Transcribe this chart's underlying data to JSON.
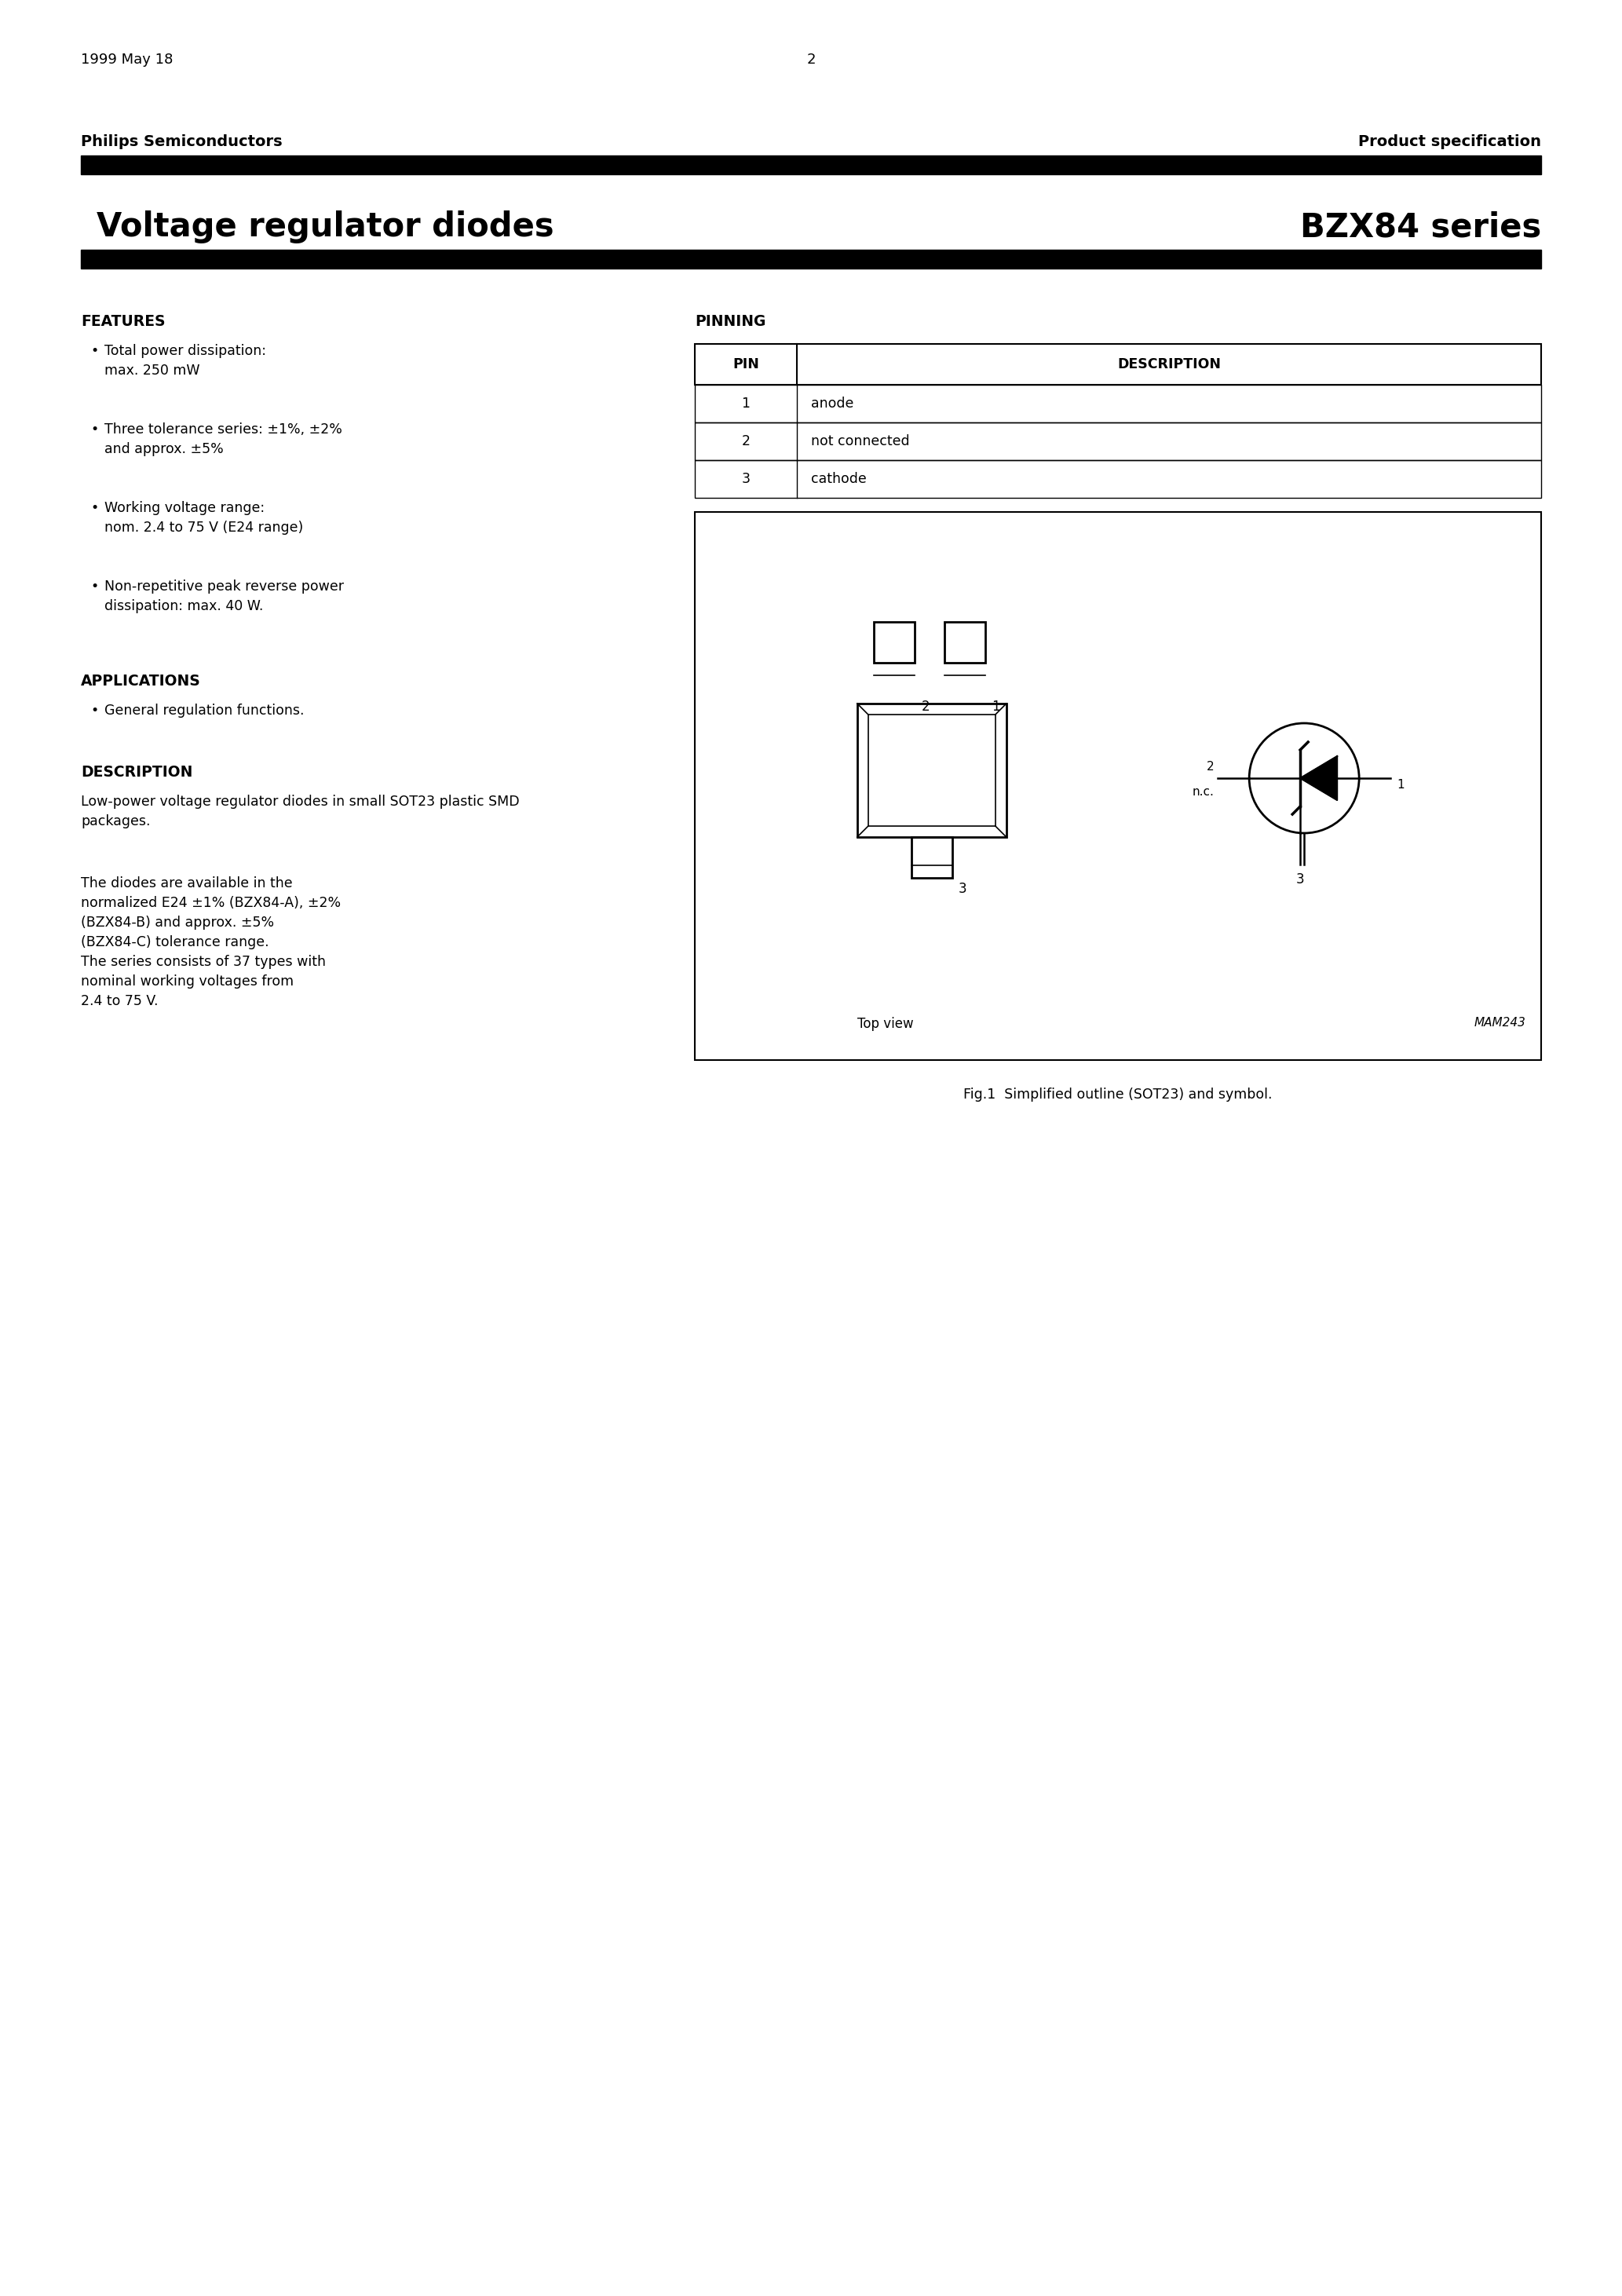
{
  "bg_color": "#ffffff",
  "header_left": "Philips Semiconductors",
  "header_right": "Product specification",
  "title_left": "Voltage regulator diodes",
  "title_right": "BZX84 series",
  "section_features": "FEATURES",
  "features": [
    "Total power dissipation:\nmax. 250 mW",
    "Three tolerance series: ±1%, ±2%\nand approx. ±5%",
    "Working voltage range:\nnom. 2.4 to 75 V (E24 range)",
    "Non-repetitive peak reverse power\ndissipation: max. 40 W."
  ],
  "section_applications": "APPLICATIONS",
  "applications": [
    "General regulation functions."
  ],
  "section_description": "DESCRIPTION",
  "description_para1": "Low-power voltage regulator diodes in small SOT23 plastic SMD\npackages.",
  "description_para2": "The diodes are available in the\nnormalized E24 ±1% (BZX84-A), ±2%\n(BZX84-B) and approx. ±5%\n(BZX84-C) tolerance range.\nThe series consists of 37 types with\nnominal working voltages from\n2.4 to 75 V.",
  "section_pinning": "PINNING",
  "pin_headers": [
    "PIN",
    "DESCRIPTION"
  ],
  "pin_data": [
    [
      "1",
      "anode"
    ],
    [
      "2",
      "not connected"
    ],
    [
      "3",
      "cathode"
    ]
  ],
  "fig_caption": "Fig.1  Simplified outline (SOT23) and symbol.",
  "top_view_label": "Top view",
  "mam_label": "MAM243",
  "footer_left": "1999 May 18",
  "footer_center": "2"
}
